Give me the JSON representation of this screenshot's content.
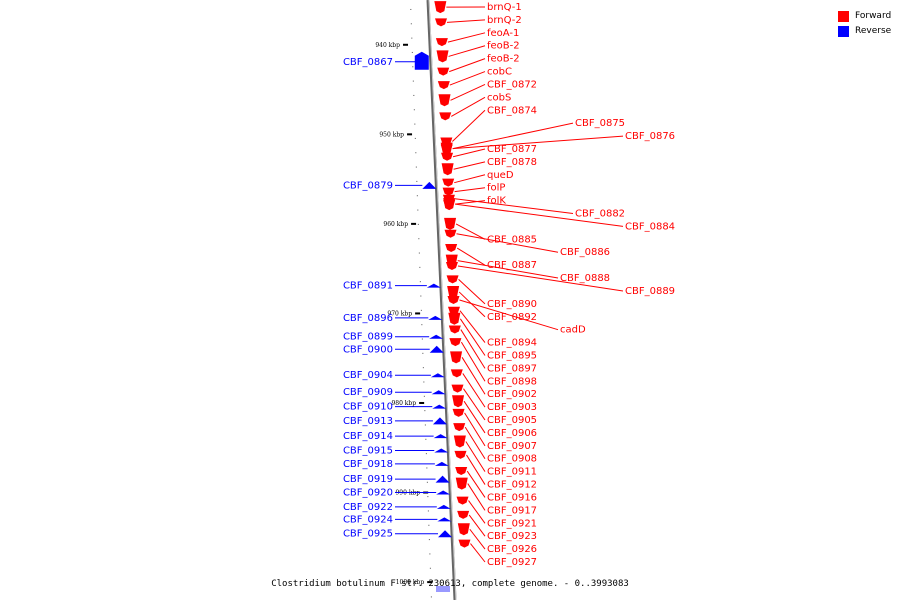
{
  "legend": {
    "forward_label": "Forward",
    "reverse_label": "Reverse",
    "forward_color": "#ff0000",
    "reverse_color": "#0000ff"
  },
  "footer": "Clostridium botulinum F str. 230613, complete genome. - 0..3993083",
  "axis": {
    "start_kbp": 935,
    "end_kbp": 1002,
    "ticks": [
      {
        "kbp": 940,
        "label": "940 kbp"
      },
      {
        "kbp": 950,
        "label": "950 kbp"
      },
      {
        "kbp": 960,
        "label": "960 kbp"
      },
      {
        "kbp": 970,
        "label": "970 kbp"
      },
      {
        "kbp": 980,
        "label": "980 kbp"
      },
      {
        "kbp": 990,
        "label": "990 kbp"
      },
      {
        "kbp": 1000,
        "label": "1000 kbp"
      }
    ]
  },
  "forward_genes": [
    {
      "name": "brnQ-1",
      "kbp": 935.8
    },
    {
      "name": "brnQ-2",
      "kbp": 937.5
    },
    {
      "name": "feoA-1",
      "kbp": 939.7
    },
    {
      "name": "feoB-2",
      "kbp": 941.3
    },
    {
      "name": "feoB-2",
      "kbp": 943.0
    },
    {
      "name": "cobC",
      "kbp": 944.5
    },
    {
      "name": "CBF_0872",
      "kbp": 946.2
    },
    {
      "name": "cobS",
      "kbp": 948.0
    },
    {
      "name": "CBF_0874",
      "kbp": 950.8
    },
    {
      "name": "CBF_0875",
      "kbp": 951.6
    },
    {
      "name": "CBF_0876",
      "kbp": 951.6
    },
    {
      "name": "CBF_0877",
      "kbp": 952.5
    },
    {
      "name": "CBF_0878",
      "kbp": 953.9
    },
    {
      "name": "queD",
      "kbp": 955.4
    },
    {
      "name": "folP",
      "kbp": 956.4
    },
    {
      "name": "folK",
      "kbp": 957.8
    },
    {
      "name": "CBF_0882",
      "kbp": 957.2
    },
    {
      "name": "CBF_0884",
      "kbp": 957.8
    },
    {
      "name": "CBF_0885",
      "kbp": 960.0
    },
    {
      "name": "CBF_0886",
      "kbp": 961.1
    },
    {
      "name": "CBF_0887",
      "kbp": 962.7
    },
    {
      "name": "CBF_0888",
      "kbp": 964.1
    },
    {
      "name": "CBF_0889",
      "kbp": 964.7
    },
    {
      "name": "CBF_0890",
      "kbp": 966.2
    },
    {
      "name": "CBF_0892",
      "kbp": 967.6
    },
    {
      "name": "cadD",
      "kbp": 968.5
    },
    {
      "name": "CBF_0894",
      "kbp": 969.7
    },
    {
      "name": "CBF_0895",
      "kbp": 970.6
    },
    {
      "name": "CBF_0897",
      "kbp": 971.8
    },
    {
      "name": "CBF_0898",
      "kbp": 973.2
    },
    {
      "name": "CBF_0902",
      "kbp": 974.9
    },
    {
      "name": "CBF_0903",
      "kbp": 976.7
    },
    {
      "name": "CBF_0905",
      "kbp": 978.4
    },
    {
      "name": "CBF_0906",
      "kbp": 979.8
    },
    {
      "name": "CBF_0907",
      "kbp": 981.1
    },
    {
      "name": "CBF_0908",
      "kbp": 982.7
    },
    {
      "name": "CBF_0911",
      "kbp": 984.3
    },
    {
      "name": "CBF_0912",
      "kbp": 985.8
    },
    {
      "name": "CBF_0916",
      "kbp": 987.6
    },
    {
      "name": "CBF_0917",
      "kbp": 989.0
    },
    {
      "name": "CBF_0921",
      "kbp": 990.9
    },
    {
      "name": "CBF_0923",
      "kbp": 992.5
    },
    {
      "name": "CBF_0926",
      "kbp": 994.1
    },
    {
      "name": "CBF_0927",
      "kbp": 995.7
    }
  ],
  "reverse_genes": [
    {
      "name": "CBF_0867",
      "kbp": 941.9
    },
    {
      "name": "CBF_0879",
      "kbp": 955.7
    },
    {
      "name": "CBF_0891",
      "kbp": 966.9
    },
    {
      "name": "CBF_0896",
      "kbp": 970.5
    },
    {
      "name": "CBF_0899",
      "kbp": 972.6
    },
    {
      "name": "CBF_0900",
      "kbp": 974.0
    },
    {
      "name": "CBF_0904",
      "kbp": 976.9
    },
    {
      "name": "CBF_0909",
      "kbp": 978.8
    },
    {
      "name": "CBF_0910",
      "kbp": 980.4
    },
    {
      "name": "CBF_0913",
      "kbp": 982.0
    },
    {
      "name": "CBF_0914",
      "kbp": 983.7
    },
    {
      "name": "CBF_0915",
      "kbp": 985.3
    },
    {
      "name": "CBF_0918",
      "kbp": 986.8
    },
    {
      "name": "CBF_0919",
      "kbp": 988.5
    },
    {
      "name": "CBF_0920",
      "kbp": 990.0
    },
    {
      "name": "CBF_0922",
      "kbp": 991.6
    },
    {
      "name": "CBF_0924",
      "kbp": 993.0
    },
    {
      "name": "CBF_0925",
      "kbp": 994.6
    }
  ]
}
